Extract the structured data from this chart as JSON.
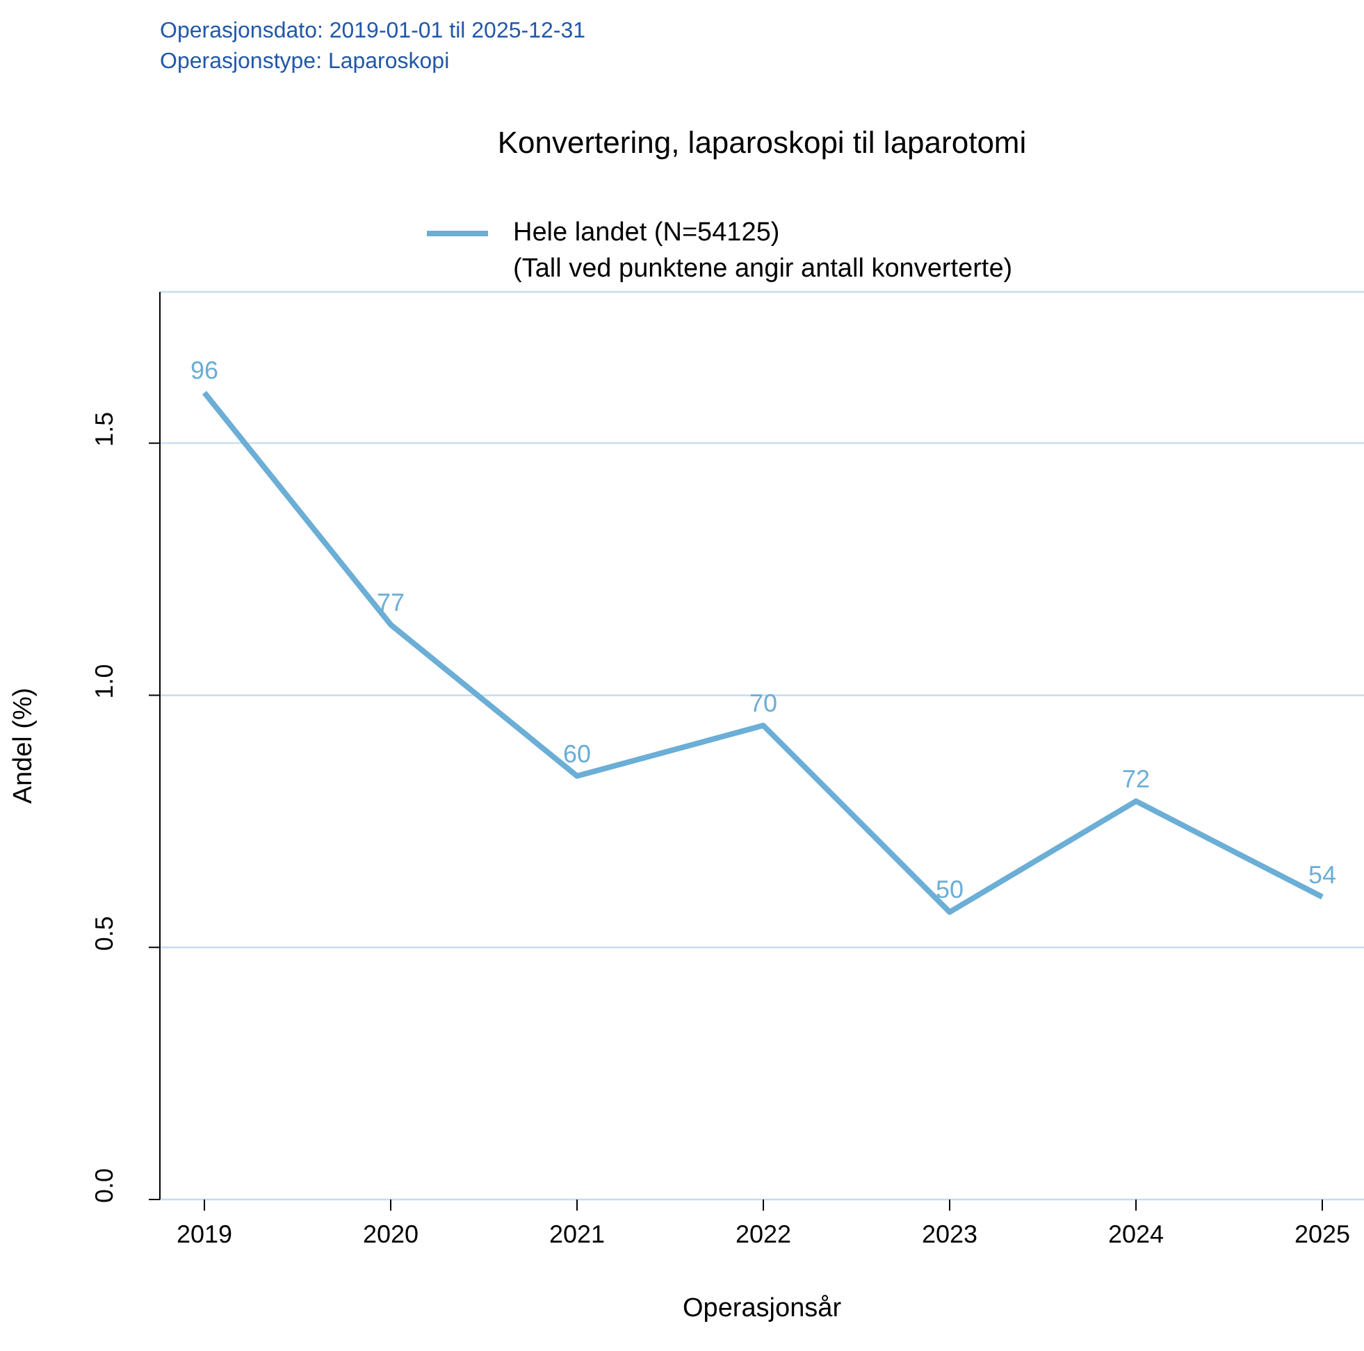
{
  "chart_data": {
    "type": "line",
    "title": "Konvertering, laparoskopi til laparotomi",
    "annotations": [
      "Operasjonsdato: 2019-01-01 til 2025-12-31",
      "Operasjonstype: Laparoskopi",
      "(Tall ved punktene angir antall konverterte)",
      {
        "text": "96",
        "x": "2019",
        "y": 1.6
      },
      {
        "text": "77",
        "x": "2020",
        "y": 1.14
      },
      {
        "text": "60",
        "x": "2021",
        "y": 0.84
      },
      {
        "text": "70",
        "x": "2022",
        "y": 0.94
      },
      {
        "text": "50",
        "x": "2023",
        "y": 0.57
      },
      {
        "text": "72",
        "x": "2024",
        "y": 0.79
      },
      {
        "text": "54",
        "x": "2025",
        "y": 0.6
      }
    ],
    "xlabel": "Operasjonsår",
    "ylabel": "Andel (%)",
    "categories": [
      "2019",
      "2020",
      "2021",
      "2022",
      "2023",
      "2024",
      "2025"
    ],
    "series": [
      {
        "name": "Hele landet (N=54125)",
        "color": "#6baed6",
        "values": [
          1.6,
          1.14,
          0.84,
          0.94,
          0.57,
          0.79,
          0.6
        ]
      }
    ],
    "ylim": [
      0,
      1.8
    ],
    "yticks": [
      {
        "value": 0,
        "label": "0.0"
      },
      {
        "value": 0.5,
        "label": "0.5"
      },
      {
        "value": 1,
        "label": "1.0"
      },
      {
        "value": 1.5,
        "label": "1.5"
      }
    ],
    "grid": "y",
    "legend": "top",
    "marker": "none",
    "line_style": "solid"
  }
}
